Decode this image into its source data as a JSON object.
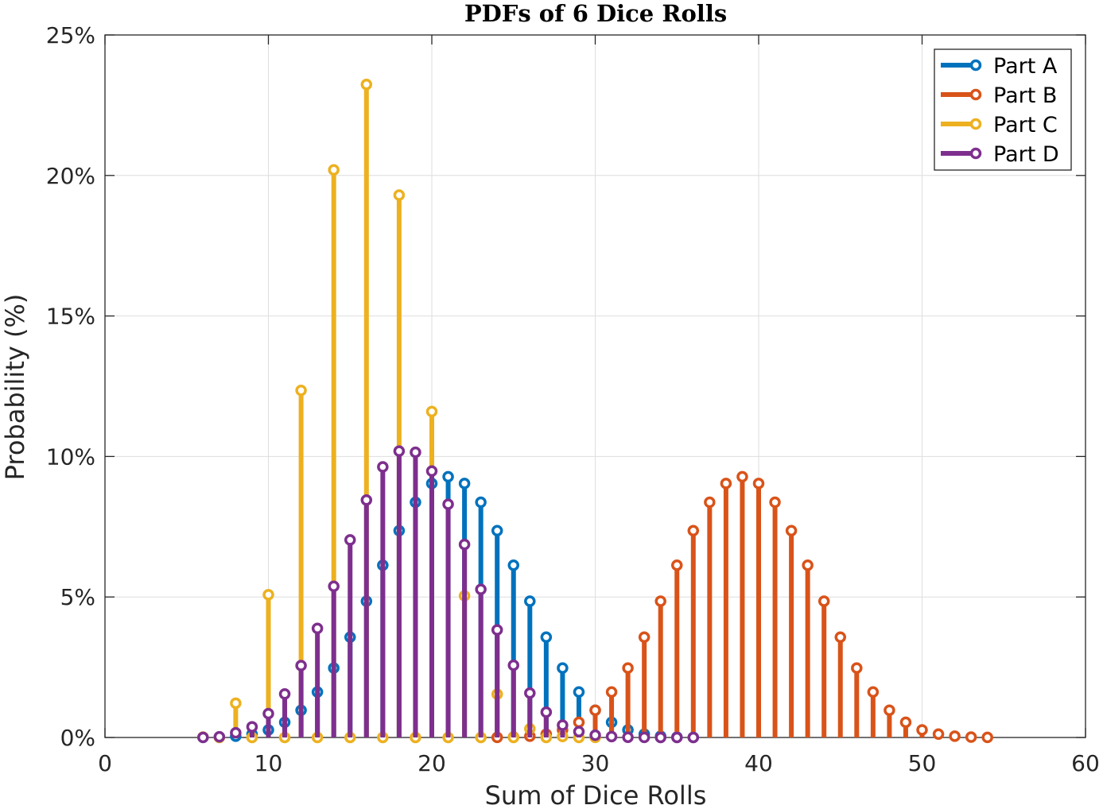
{
  "chart_data": {
    "type": "stem",
    "title": "PDFs of 6 Dice Rolls",
    "xlabel": "Sum of Dice Rolls",
    "ylabel": "Probability (%)",
    "xlim": [
      0,
      60
    ],
    "ylim": [
      0,
      25
    ],
    "xticks": [
      0,
      10,
      20,
      30,
      40,
      50,
      60
    ],
    "yticks": [
      0,
      5,
      10,
      15,
      20,
      25
    ],
    "xtick_labels": [
      "0",
      "10",
      "20",
      "30",
      "40",
      "50",
      "60"
    ],
    "ytick_labels": [
      "0%",
      "5%",
      "10%",
      "15%",
      "20%",
      "25%"
    ],
    "grid": true,
    "legend_position": "top-right",
    "series": [
      {
        "name": "Part A",
        "color": "#0072BD",
        "x": [
          6,
          7,
          8,
          9,
          10,
          11,
          12,
          13,
          14,
          15,
          16,
          17,
          18,
          19,
          20,
          21,
          22,
          23,
          24,
          25,
          26,
          27,
          28,
          29,
          30,
          31,
          32,
          33,
          34,
          35,
          36
        ],
        "values": [
          0.0021,
          0.0129,
          0.045,
          0.12,
          0.27,
          0.54,
          0.97,
          1.62,
          2.47,
          3.57,
          4.85,
          6.13,
          7.36,
          8.37,
          9.04,
          9.28,
          9.04,
          8.37,
          7.36,
          6.13,
          4.85,
          3.57,
          2.47,
          1.62,
          0.97,
          0.54,
          0.27,
          0.12,
          0.045,
          0.0129,
          0.0021
        ]
      },
      {
        "name": "Part B",
        "color": "#D95319",
        "x": [
          24,
          25,
          26,
          27,
          28,
          29,
          30,
          31,
          32,
          33,
          34,
          35,
          36,
          37,
          38,
          39,
          40,
          41,
          42,
          43,
          44,
          45,
          46,
          47,
          48,
          49,
          50,
          51,
          52,
          53,
          54
        ],
        "values": [
          0.0021,
          0.0129,
          0.045,
          0.12,
          0.27,
          0.54,
          0.97,
          1.62,
          2.47,
          3.57,
          4.85,
          6.13,
          7.36,
          8.37,
          9.04,
          9.28,
          9.04,
          8.37,
          7.36,
          6.13,
          4.85,
          3.57,
          2.47,
          1.62,
          0.97,
          0.54,
          0.27,
          0.12,
          0.045,
          0.0129,
          0.0021
        ]
      },
      {
        "name": "Part C",
        "color": "#EDB120",
        "x": [
          6,
          7,
          8,
          9,
          10,
          11,
          12,
          13,
          14,
          15,
          16,
          17,
          18,
          19,
          20,
          21,
          22,
          23,
          24,
          25,
          26,
          27,
          28,
          29,
          30
        ],
        "values": [
          0.0129,
          0,
          1.22,
          0,
          5.08,
          0,
          12.35,
          0,
          20.2,
          0,
          23.24,
          0,
          19.3,
          0,
          11.6,
          0,
          5.04,
          0,
          1.54,
          0,
          0.31,
          0,
          0.036,
          0,
          0.0021
        ]
      },
      {
        "name": "Part D",
        "color": "#7E2F8E",
        "x": [
          6,
          7,
          8,
          9,
          10,
          11,
          12,
          13,
          14,
          15,
          16,
          17,
          18,
          19,
          20,
          21,
          22,
          23,
          24,
          25,
          26,
          27,
          28,
          29,
          30,
          31,
          32,
          33,
          34,
          35,
          36
        ],
        "values": [
          0.0021,
          0.0257,
          0.167,
          0.38,
          0.85,
          1.55,
          2.56,
          3.88,
          5.38,
          7.03,
          8.45,
          9.63,
          10.19,
          10.15,
          9.48,
          8.3,
          6.87,
          5.27,
          3.83,
          2.57,
          1.58,
          0.9,
          0.44,
          0.21,
          0.08,
          0.033,
          0.0069,
          0.0021,
          0.0003,
          0.0001,
          0.0001
        ]
      }
    ]
  }
}
